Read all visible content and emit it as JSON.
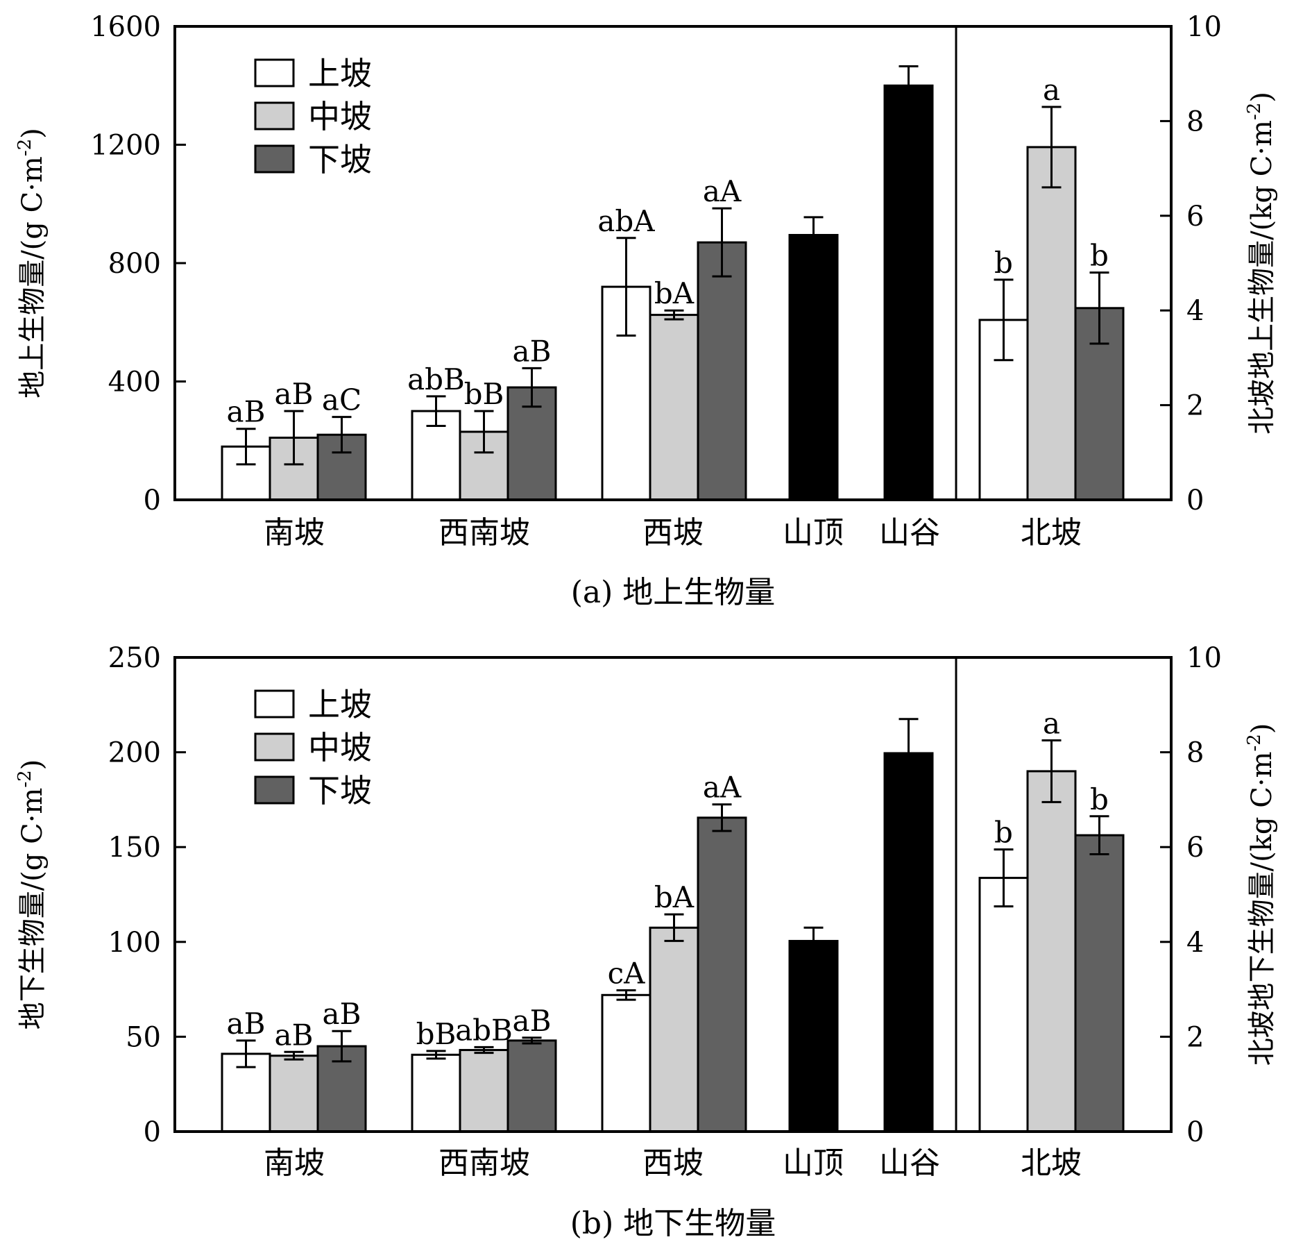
{
  "chart_data": [
    {
      "type": "bar",
      "caption": "(a) 地上生物量",
      "ylabel": "地上生物量/(g C·m",
      "ylabel_sup": "-2",
      "ylabel_close": ")",
      "y2label": "北坡地上生物量/(kg C·m",
      "y2label_sup": "-2",
      "y2label_close": ")",
      "ylim": [
        0,
        1600
      ],
      "yticks": [
        0,
        400,
        800,
        1200,
        1600
      ],
      "y2lim": [
        0,
        10
      ],
      "y2ticks": [
        0,
        2,
        4,
        6,
        8,
        10
      ],
      "legend": [
        "上坡",
        "中坡",
        "下坡"
      ],
      "legend_position": "top-left",
      "groups": [
        {
          "label": "南坡",
          "axis": "left",
          "bars": [
            {
              "series": "上坡",
              "value": 180,
              "error": 60,
              "letter": "aB"
            },
            {
              "series": "中坡",
              "value": 210,
              "error": 90,
              "letter": "aB"
            },
            {
              "series": "下坡",
              "value": 220,
              "error": 60,
              "letter": "aC"
            }
          ]
        },
        {
          "label": "西南坡",
          "axis": "left",
          "bars": [
            {
              "series": "上坡",
              "value": 300,
              "error": 50,
              "letter": "abB"
            },
            {
              "series": "中坡",
              "value": 230,
              "error": 70,
              "letter": "bB"
            },
            {
              "series": "下坡",
              "value": 380,
              "error": 65,
              "letter": "aB"
            }
          ]
        },
        {
          "label": "西坡",
          "axis": "left",
          "bars": [
            {
              "series": "上坡",
              "value": 720,
              "error": 165,
              "letter": "abA"
            },
            {
              "series": "中坡",
              "value": 625,
              "error": 15,
              "letter": "bA"
            },
            {
              "series": "下坡",
              "value": 870,
              "error": 115,
              "letter": "aA"
            }
          ]
        },
        {
          "label": "山顶",
          "axis": "left",
          "bars": [
            {
              "series": "山顶",
              "value": 895,
              "error": 60,
              "letter": ""
            }
          ]
        },
        {
          "label": "山谷",
          "axis": "left",
          "bars": [
            {
              "series": "山谷",
              "value": 1400,
              "error": 65,
              "letter": ""
            }
          ]
        },
        {
          "label": "北坡",
          "axis": "right",
          "bars": [
            {
              "series": "上坡",
              "value": 3.8,
              "error": 0.85,
              "letter": "b"
            },
            {
              "series": "中坡",
              "value": 7.45,
              "error": 0.85,
              "letter": "a"
            },
            {
              "series": "下坡",
              "value": 4.05,
              "error": 0.75,
              "letter": "b"
            }
          ]
        }
      ]
    },
    {
      "type": "bar",
      "caption": "(b) 地下生物量",
      "ylabel": "地下生物量/(g C·m",
      "ylabel_sup": "-2",
      "ylabel_close": ")",
      "y2label": "北坡地下生物量/(kg C·m",
      "y2label_sup": "-2",
      "y2label_close": ")",
      "ylim": [
        0,
        250
      ],
      "yticks": [
        0,
        50,
        100,
        150,
        200,
        250
      ],
      "y2lim": [
        0,
        10
      ],
      "y2ticks": [
        0,
        2,
        4,
        6,
        8,
        10
      ],
      "legend": [
        "上坡",
        "中坡",
        "下坡"
      ],
      "legend_position": "top-left",
      "groups": [
        {
          "label": "南坡",
          "axis": "left",
          "bars": [
            {
              "series": "上坡",
              "value": 41,
              "error": 7,
              "letter": "aB"
            },
            {
              "series": "中坡",
              "value": 40,
              "error": 2,
              "letter": "aB"
            },
            {
              "series": "下坡",
              "value": 45,
              "error": 8,
              "letter": "aB"
            }
          ]
        },
        {
          "label": "西南坡",
          "axis": "left",
          "bars": [
            {
              "series": "上坡",
              "value": 40.5,
              "error": 2,
              "letter": "bB"
            },
            {
              "series": "中坡",
              "value": 43,
              "error": 1.5,
              "letter": "abB"
            },
            {
              "series": "下坡",
              "value": 48,
              "error": 1.5,
              "letter": "aB"
            }
          ]
        },
        {
          "label": "西坡",
          "axis": "left",
          "bars": [
            {
              "series": "上坡",
              "value": 72,
              "error": 2.5,
              "letter": "cA"
            },
            {
              "series": "中坡",
              "value": 107.5,
              "error": 7,
              "letter": "bA"
            },
            {
              "series": "下坡",
              "value": 165.5,
              "error": 7,
              "letter": "aA"
            }
          ]
        },
        {
          "label": "山顶",
          "axis": "left",
          "bars": [
            {
              "series": "山顶",
              "value": 100.5,
              "error": 7,
              "letter": ""
            }
          ]
        },
        {
          "label": "山谷",
          "axis": "left",
          "bars": [
            {
              "series": "山谷",
              "value": 199.5,
              "error": 18,
              "letter": ""
            }
          ]
        },
        {
          "label": "北坡",
          "axis": "right",
          "bars": [
            {
              "series": "上坡",
              "value": 5.35,
              "error": 0.6,
              "letter": "b"
            },
            {
              "series": "中坡",
              "value": 7.6,
              "error": 0.65,
              "letter": "a"
            },
            {
              "series": "下坡",
              "value": 6.25,
              "error": 0.4,
              "letter": "b"
            }
          ]
        }
      ]
    }
  ],
  "colors": {
    "上坡": "#ffffff",
    "中坡": "#cfcfcf",
    "下坡": "#616161",
    "山顶": "#000000",
    "山谷": "#000000"
  }
}
